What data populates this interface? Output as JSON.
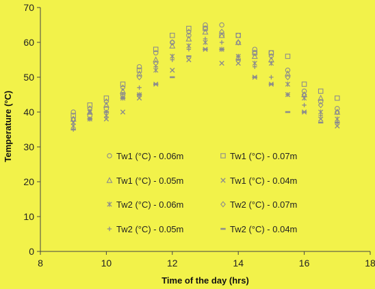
{
  "chart_data": {
    "type": "scatter",
    "title": "",
    "xlabel": "Time of the day (hrs)",
    "ylabel": "Temperature (°C)",
    "xlim": [
      8,
      18
    ],
    "ylim": [
      0,
      70
    ],
    "xticks": [
      8,
      10,
      12,
      14,
      16,
      18
    ],
    "yticks": [
      0,
      10,
      20,
      30,
      40,
      50,
      60,
      70
    ],
    "grid": false,
    "legend": "inside-lower-center",
    "background": "#f2f24a",
    "marker_color": "#8c8c8c",
    "series": [
      {
        "name": "Tw1 (°C) - 0.06m",
        "marker": "circle",
        "points": [
          [
            9,
            40
          ],
          [
            9.5,
            39
          ],
          [
            10,
            41
          ],
          [
            10.5,
            45
          ],
          [
            11,
            53
          ],
          [
            11.5,
            57
          ],
          [
            12,
            60
          ],
          [
            12.5,
            62
          ],
          [
            13,
            65
          ],
          [
            13.5,
            65
          ],
          [
            14,
            62
          ],
          [
            14.5,
            58
          ],
          [
            15,
            57
          ],
          [
            15.5,
            52
          ],
          [
            16,
            46
          ],
          [
            16.5,
            43
          ],
          [
            17,
            41
          ]
        ]
      },
      {
        "name": "Tw1 (°C) - 0.07m",
        "marker": "square",
        "points": [
          [
            9,
            39
          ],
          [
            9.5,
            42
          ],
          [
            10,
            44
          ],
          [
            10.5,
            48
          ],
          [
            11,
            52
          ],
          [
            11.5,
            58
          ],
          [
            12,
            62
          ],
          [
            12.5,
            64
          ],
          [
            13,
            64
          ],
          [
            13.5,
            62
          ],
          [
            14,
            62
          ],
          [
            14.5,
            57
          ],
          [
            15,
            57
          ],
          [
            15.5,
            56
          ],
          [
            16,
            48
          ],
          [
            16.5,
            46
          ],
          [
            17,
            44
          ]
        ]
      },
      {
        "name": "Tw1 (°C) - 0.05m",
        "marker": "triangle",
        "points": [
          [
            9,
            38
          ],
          [
            9.5,
            40
          ],
          [
            10,
            42
          ],
          [
            10.5,
            46
          ],
          [
            11,
            51
          ],
          [
            11.5,
            55
          ],
          [
            12,
            59
          ],
          [
            12.5,
            61
          ],
          [
            13,
            63
          ],
          [
            13.5,
            62
          ],
          [
            14,
            60
          ],
          [
            14.5,
            56
          ],
          [
            15,
            55
          ],
          [
            15.5,
            51
          ],
          [
            16,
            45
          ],
          [
            16.5,
            44
          ],
          [
            17,
            40
          ]
        ]
      },
      {
        "name": "Tw1 (°C) - 0.04m",
        "marker": "x",
        "points": [
          [
            9,
            37
          ],
          [
            9.5,
            40
          ],
          [
            10,
            38
          ],
          [
            10.5,
            40
          ],
          [
            11,
            44
          ],
          [
            11.5,
            48
          ],
          [
            12,
            52
          ],
          [
            12.5,
            55
          ],
          [
            13,
            58
          ],
          [
            13.5,
            54
          ],
          [
            14,
            54
          ],
          [
            14.5,
            50
          ],
          [
            15,
            48
          ],
          [
            15.5,
            45
          ],
          [
            16,
            40
          ],
          [
            16.5,
            38
          ],
          [
            17,
            36
          ]
        ]
      },
      {
        "name": "Tw2 (°C) - 0.06m",
        "marker": "star",
        "points": [
          [
            9,
            36
          ],
          [
            9.5,
            38
          ],
          [
            10,
            39
          ],
          [
            10.5,
            44
          ],
          [
            11,
            45
          ],
          [
            11.5,
            52
          ],
          [
            12,
            56
          ],
          [
            12.5,
            59
          ],
          [
            13,
            60
          ],
          [
            13.5,
            58
          ],
          [
            14,
            56
          ],
          [
            14.5,
            54
          ],
          [
            15,
            54
          ],
          [
            15.5,
            48
          ],
          [
            16,
            44
          ],
          [
            16.5,
            40
          ],
          [
            17,
            38
          ]
        ]
      },
      {
        "name": "Tw2 (°C) - 0.07m",
        "marker": "diamond",
        "points": [
          [
            9,
            38
          ],
          [
            9.5,
            41
          ],
          [
            10,
            43
          ],
          [
            10.5,
            47
          ],
          [
            11,
            50
          ],
          [
            11.5,
            54
          ],
          [
            12,
            60
          ],
          [
            12.5,
            63
          ],
          [
            13,
            64
          ],
          [
            13.5,
            63
          ],
          [
            14,
            60
          ],
          [
            14.5,
            57
          ],
          [
            15,
            56
          ],
          [
            15.5,
            50
          ],
          [
            16,
            45
          ],
          [
            16.5,
            42
          ],
          [
            17,
            40
          ]
        ]
      },
      {
        "name": "Tw2 (°C) - 0.05m",
        "marker": "plus",
        "points": [
          [
            9,
            35
          ],
          [
            9.5,
            38
          ],
          [
            10,
            40
          ],
          [
            10.5,
            45
          ],
          [
            11,
            47
          ],
          [
            11.5,
            53
          ],
          [
            12,
            55
          ],
          [
            12.5,
            58
          ],
          [
            13,
            61
          ],
          [
            13.5,
            60
          ],
          [
            14,
            56
          ],
          [
            14.5,
            53
          ],
          [
            15,
            50
          ],
          [
            15.5,
            45
          ],
          [
            16,
            42
          ],
          [
            16.5,
            39
          ],
          [
            17,
            37
          ]
        ]
      },
      {
        "name": "Tw2 (°C) - 0.04m",
        "marker": "dash",
        "points": [
          [
            9,
            35
          ],
          [
            9.5,
            38
          ],
          [
            10,
            40
          ],
          [
            10.5,
            44
          ],
          [
            11,
            45
          ],
          [
            11.5,
            48
          ],
          [
            12,
            50
          ],
          [
            12.5,
            56
          ],
          [
            13,
            58
          ],
          [
            13.5,
            58
          ],
          [
            14,
            55
          ],
          [
            14.5,
            50
          ],
          [
            15,
            48
          ],
          [
            15.5,
            40
          ],
          [
            16,
            40
          ],
          [
            16.5,
            37
          ],
          [
            17,
            37
          ]
        ]
      }
    ]
  }
}
